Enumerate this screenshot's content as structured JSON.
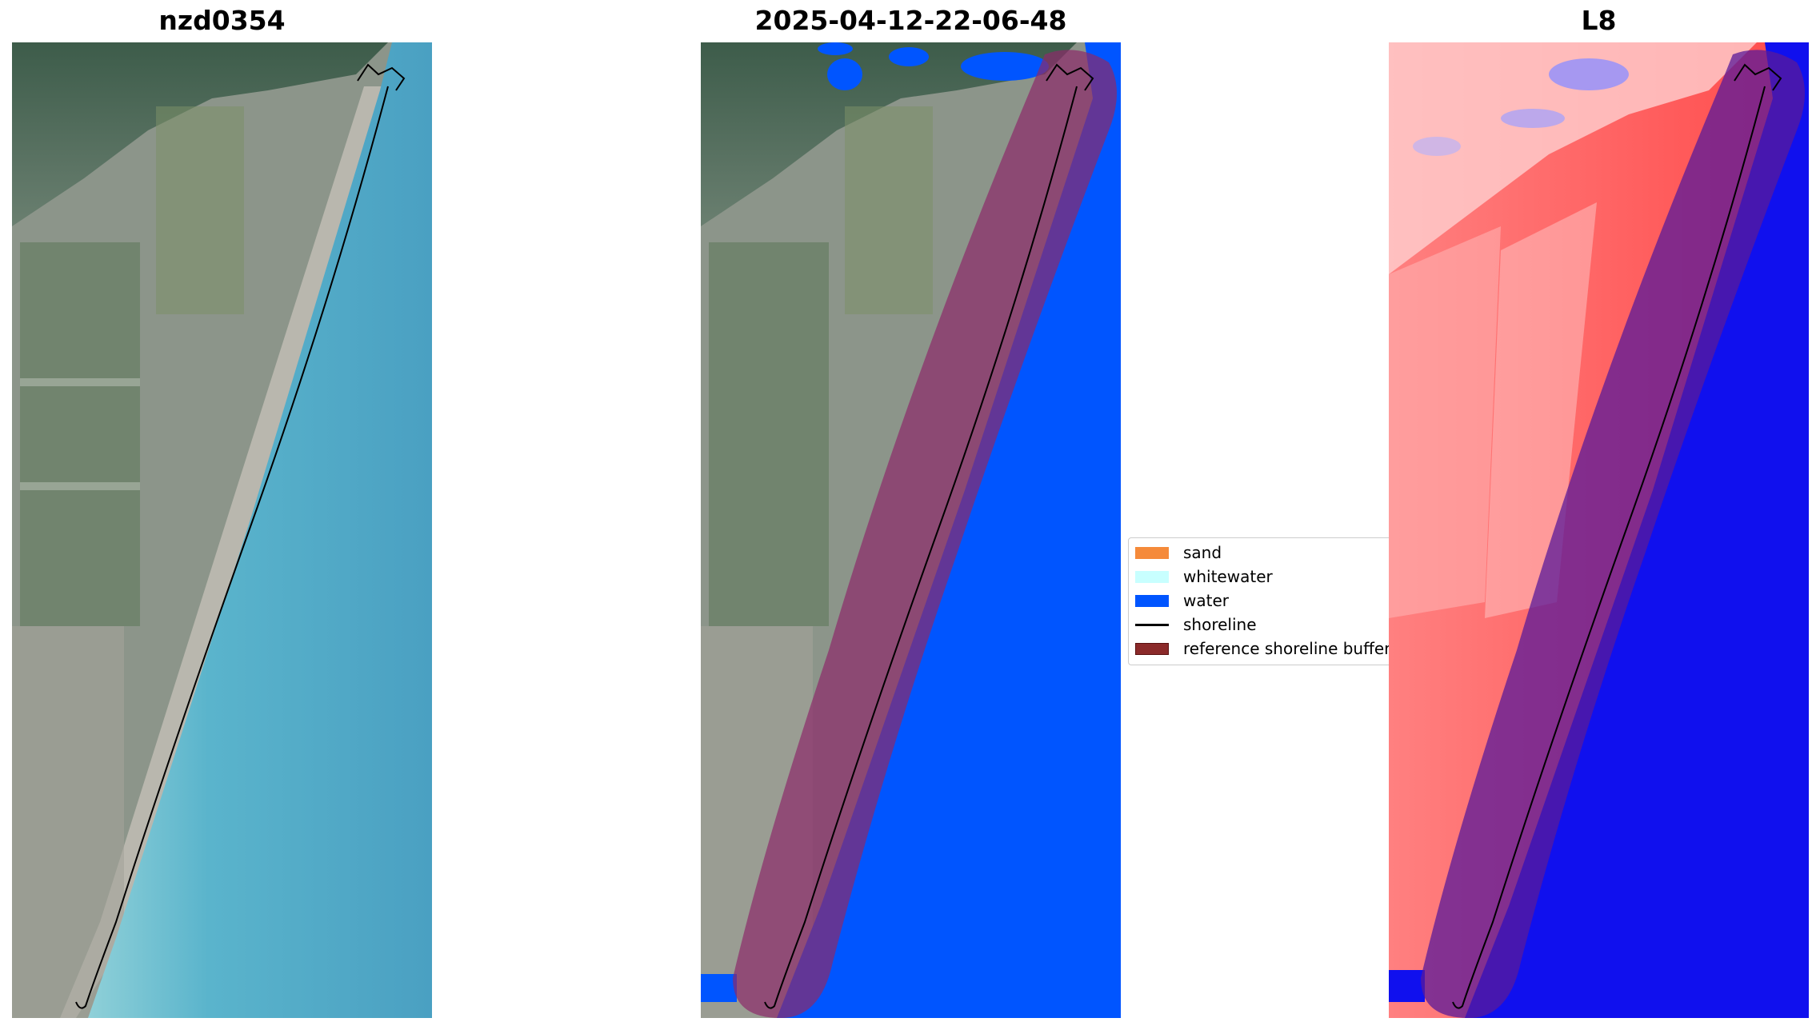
{
  "panels": [
    {
      "title": "nzd0354"
    },
    {
      "title": "2025-04-12-22-06-48"
    },
    {
      "title": "L8"
    }
  ],
  "legend": {
    "items": [
      {
        "label": "sand",
        "color": "#f58a3a"
      },
      {
        "label": "whitewater",
        "color": "#c8ffff"
      },
      {
        "label": "water",
        "color": "#0055ff"
      },
      {
        "label": "shoreline",
        "color": "#000000"
      },
      {
        "label": "reference shoreline buffer",
        "color": "#8b2a2a"
      }
    ]
  },
  "colors": {
    "ocean_rgb": "#5aaec8",
    "land_rgb": "#8c958a",
    "water_class": "#0055ff",
    "buffer": "#8b2a2a",
    "mndwi_land": "#ff5555",
    "mndwi_water": "#1010ee"
  }
}
